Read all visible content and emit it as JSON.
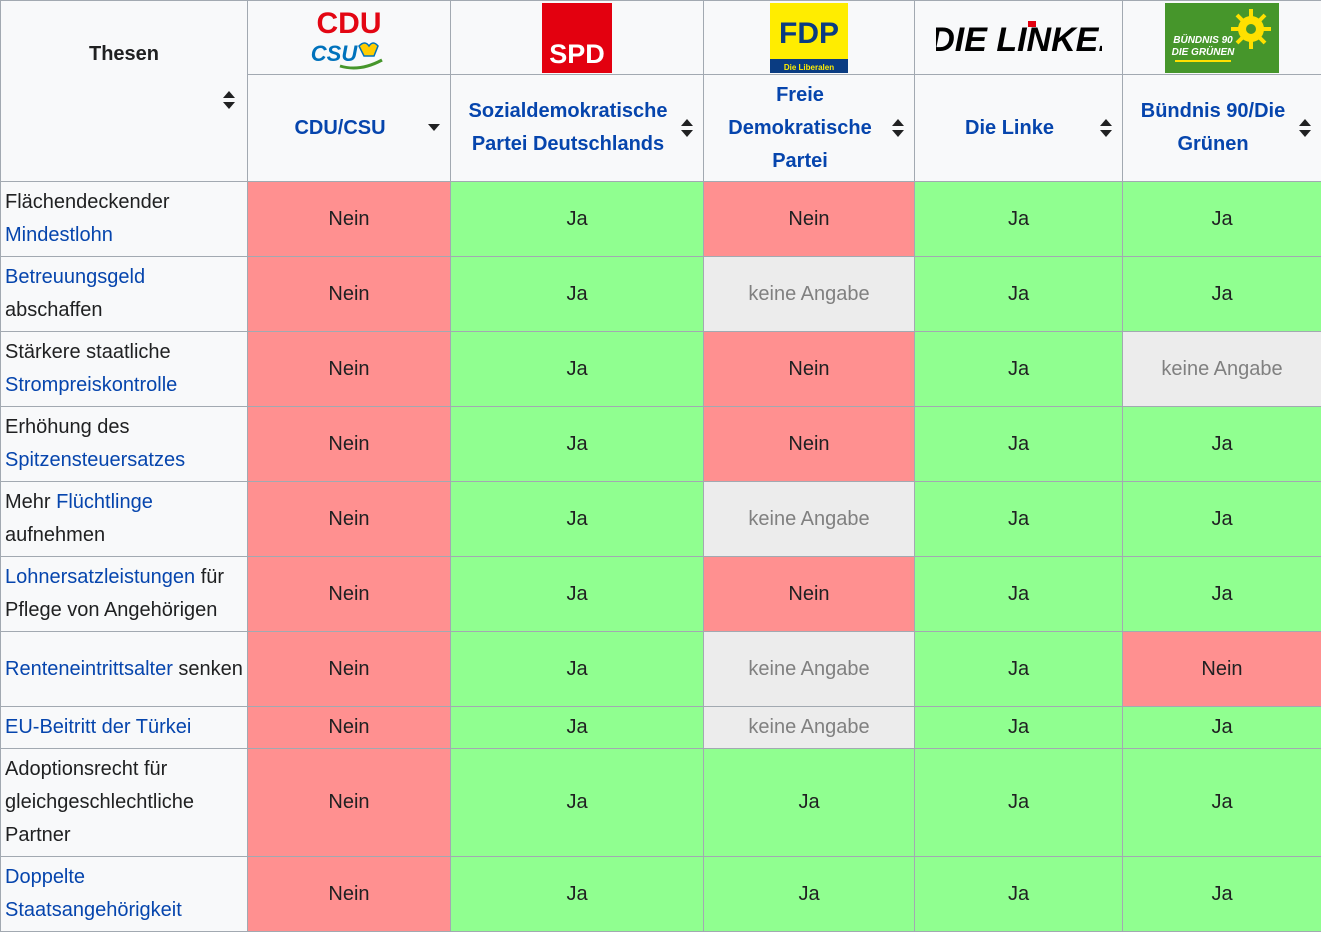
{
  "header": {
    "thesen_label": "Thesen",
    "parties": [
      {
        "logo_text": "CDU",
        "logo_sub": "CSU",
        "name": "CDU/CSU",
        "color": "#e30613"
      },
      {
        "logo_text": "SPD",
        "name": "Sozialdemokratische Partei Deutschlands",
        "color": "#e3000f"
      },
      {
        "logo_text": "FDP",
        "logo_sub": "Die Liberalen",
        "name": "Freie Demokratische Partei",
        "color": "#ffed00"
      },
      {
        "logo_text": "DIE LINKE.",
        "name": "Die Linke",
        "color": "#000000"
      },
      {
        "logo_text": "BÜNDNIS 90",
        "logo_sub": "DIE GRÜNEN",
        "name": "Bündnis 90/Die Grünen",
        "color": "#46962b"
      }
    ]
  },
  "colors": {
    "ja": "#90ff90",
    "nein": "#ff9090",
    "keine_angabe": "#ececec",
    "link": "#0645ad"
  },
  "rows": [
    {
      "pre": "Flächendeckender ",
      "link": "Mindestlohn",
      "post": "",
      "values": [
        "Nein",
        "Ja",
        "Nein",
        "Ja",
        "Ja"
      ]
    },
    {
      "pre": "",
      "link": "Betreuungsgeld",
      "post": " abschaffen",
      "values": [
        "Nein",
        "Ja",
        "keine Angabe",
        "Ja",
        "Ja"
      ]
    },
    {
      "pre": "Stärkere staatliche ",
      "link": "Strompreiskontrolle",
      "post": "",
      "values": [
        "Nein",
        "Ja",
        "Nein",
        "Ja",
        "keine Angabe"
      ]
    },
    {
      "pre": "Erhöhung des ",
      "link": "Spitzensteuersatzes",
      "post": "",
      "values": [
        "Nein",
        "Ja",
        "Nein",
        "Ja",
        "Ja"
      ]
    },
    {
      "pre": "Mehr ",
      "link": "Flüchtlinge",
      "post": " aufnehmen",
      "values": [
        "Nein",
        "Ja",
        "keine Angabe",
        "Ja",
        "Ja"
      ]
    },
    {
      "pre": "",
      "link": "Lohnersatzleistungen",
      "post": " für Pflege von Angehörigen",
      "values": [
        "Nein",
        "Ja",
        "Nein",
        "Ja",
        "Ja"
      ]
    },
    {
      "pre": "",
      "link": "Renteneintrittsalter",
      "post": " senken",
      "values": [
        "Nein",
        "Ja",
        "keine Angabe",
        "Ja",
        "Nein"
      ]
    },
    {
      "pre": "",
      "link": "EU-Beitritt der Türkei",
      "post": "",
      "values": [
        "Nein",
        "Ja",
        "keine Angabe",
        "Ja",
        "Ja"
      ]
    },
    {
      "pre": "Adoptionsrecht für gleichgeschlechtliche Partner",
      "link": "",
      "post": "",
      "values": [
        "Nein",
        "Ja",
        "Ja",
        "Ja",
        "Ja"
      ]
    },
    {
      "pre": "",
      "link": "Doppelte Staatsangehörigkeit",
      "post": "",
      "values": [
        "Nein",
        "Ja",
        "Ja",
        "Ja",
        "Ja"
      ]
    }
  ]
}
